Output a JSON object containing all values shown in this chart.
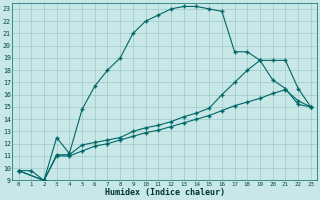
{
  "xlabel": "Humidex (Indice chaleur)",
  "bg_color": "#c8e8e8",
  "grid_color": "#a0c8c8",
  "line_color": "#006666",
  "xlim": [
    -0.5,
    23.5
  ],
  "ylim": [
    9,
    23.5
  ],
  "xticks": [
    0,
    1,
    2,
    3,
    4,
    5,
    6,
    7,
    8,
    9,
    10,
    11,
    12,
    13,
    14,
    15,
    16,
    17,
    18,
    19,
    20,
    21,
    22,
    23
  ],
  "yticks": [
    9,
    10,
    11,
    12,
    13,
    14,
    15,
    16,
    17,
    18,
    19,
    20,
    21,
    22,
    23
  ],
  "line1_x": [
    0,
    1,
    2,
    3,
    4,
    5,
    6,
    7,
    8,
    9,
    10,
    11,
    12,
    13,
    14,
    15,
    16,
    17,
    18,
    19,
    20,
    21,
    22,
    23
  ],
  "line1_y": [
    9.8,
    9.8,
    9.0,
    12.5,
    11.2,
    14.8,
    16.7,
    18.0,
    19.0,
    21.0,
    22.0,
    22.5,
    23.0,
    23.2,
    23.2,
    23.0,
    22.8,
    19.5,
    19.5,
    18.8,
    17.2,
    16.5,
    15.2,
    15.0
  ],
  "line2_x": [
    0,
    2,
    3,
    4,
    5,
    6,
    7,
    8,
    9,
    10,
    11,
    12,
    13,
    14,
    15,
    16,
    17,
    18,
    19,
    20,
    21,
    22,
    23
  ],
  "line2_y": [
    9.8,
    9.0,
    11.1,
    11.1,
    11.9,
    12.1,
    12.3,
    12.5,
    13.0,
    13.3,
    13.5,
    13.8,
    14.2,
    14.5,
    14.9,
    16.0,
    17.0,
    18.0,
    18.8,
    18.8,
    18.8,
    16.5,
    15.0
  ],
  "line3_x": [
    0,
    2,
    3,
    4,
    5,
    6,
    7,
    8,
    9,
    10,
    11,
    12,
    13,
    14,
    15,
    16,
    17,
    18,
    19,
    20,
    21,
    22,
    23
  ],
  "line3_y": [
    9.8,
    9.0,
    11.0,
    11.0,
    11.4,
    11.8,
    12.0,
    12.3,
    12.6,
    12.9,
    13.1,
    13.4,
    13.7,
    14.0,
    14.3,
    14.7,
    15.1,
    15.4,
    15.7,
    16.1,
    16.4,
    15.5,
    15.0
  ]
}
